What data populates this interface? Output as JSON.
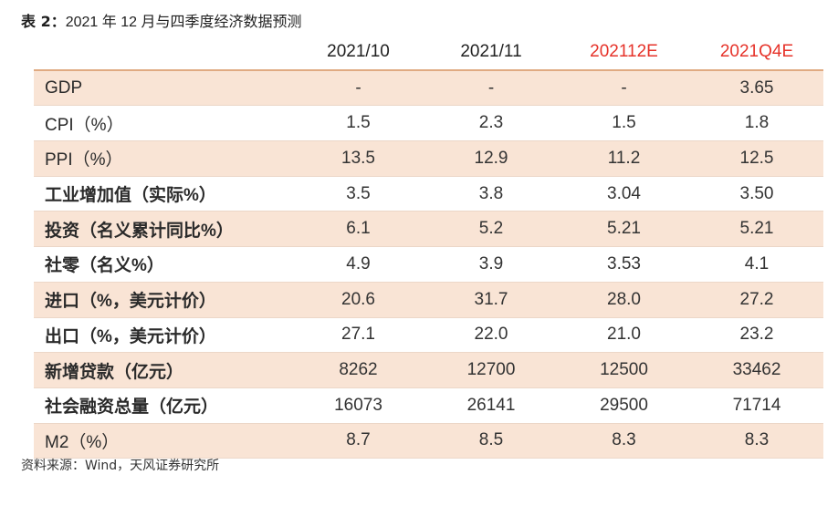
{
  "title": {
    "prefix": "表 2：",
    "text": "2021 年 12 月与四季度经济数据预测"
  },
  "table": {
    "columns": [
      "2021/10",
      "2021/11",
      "202112E",
      "2021Q4E"
    ],
    "rows": [
      {
        "label": "GDP",
        "values": [
          "-",
          "-",
          "-",
          "3.65"
        ]
      },
      {
        "label": "CPI（%）",
        "values": [
          "1.5",
          "2.3",
          "1.5",
          "1.8"
        ]
      },
      {
        "label": "PPI（%）",
        "values": [
          "13.5",
          "12.9",
          "11.2",
          "12.5"
        ]
      },
      {
        "label": "工业增加值（实际%）",
        "values": [
          "3.5",
          "3.8",
          "3.04",
          "3.50"
        ]
      },
      {
        "label": "投资（名义累计同比%）",
        "values": [
          "6.1",
          "5.2",
          "5.21",
          "5.21"
        ]
      },
      {
        "label": "社零（名义%）",
        "values": [
          "4.9",
          "3.9",
          "3.53",
          "4.1"
        ]
      },
      {
        "label": "进口（%，美元计价）",
        "values": [
          "20.6",
          "31.7",
          "28.0",
          "27.2"
        ]
      },
      {
        "label": "出口（%，美元计价）",
        "values": [
          "27.1",
          "22.0",
          "21.0",
          "23.2"
        ]
      },
      {
        "label": "新增贷款（亿元）",
        "values": [
          "8262",
          "12700",
          "12500",
          "33462"
        ]
      },
      {
        "label": "社会融资总量（亿元）",
        "values": [
          "16073",
          "26141",
          "29500",
          "71714"
        ]
      },
      {
        "label": "M2（%）",
        "values": [
          "8.7",
          "8.5",
          "8.3",
          "8.3"
        ]
      }
    ]
  },
  "source": "资料来源：Wind，天风证券研究所",
  "colors": {
    "forecast": "#e6332a",
    "stripe": "#f9e4d5",
    "rule": "#e0aa82"
  }
}
